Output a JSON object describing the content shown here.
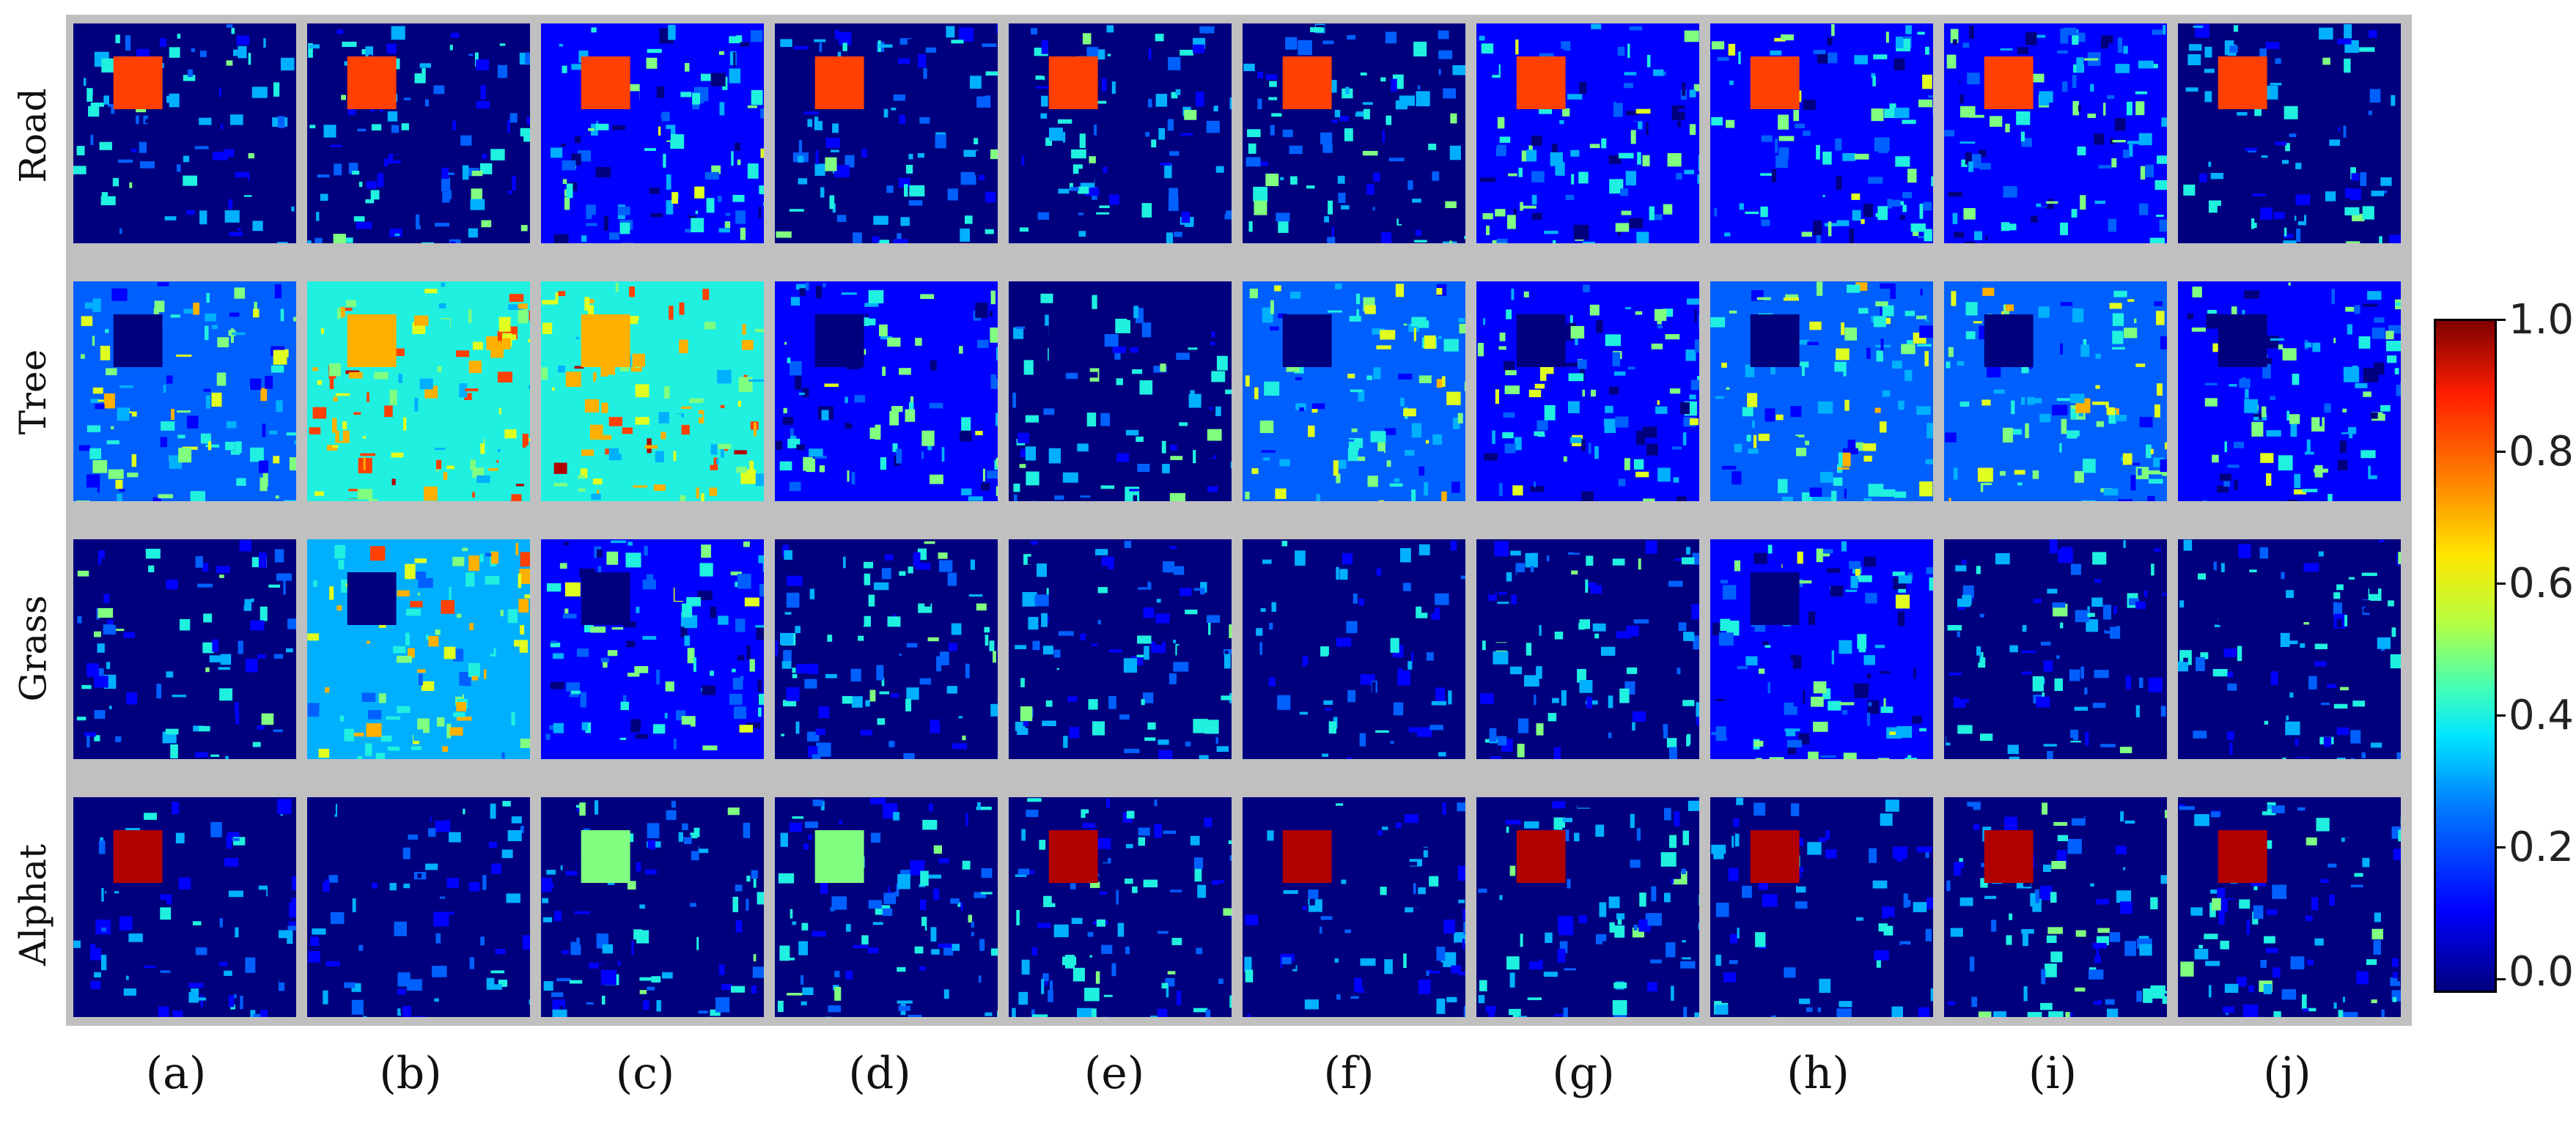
{
  "row_labels": [
    "Road",
    "Tree",
    "Grass",
    "Alphat"
  ],
  "column_labels": [
    "(a)",
    "(b)",
    "(c)",
    "(d)",
    "(e)",
    "(f)",
    "(g)",
    "(h)",
    "(i)",
    "(j)"
  ],
  "colorbar": {
    "ticks": [
      "1.0",
      "0.8",
      "0.6",
      "0.4",
      "0.2",
      "0.0"
    ],
    "colormap": "jet",
    "min": 0.0,
    "max": 1.0
  },
  "colors": {
    "background": "#c0c0c0",
    "panel_low": "#00007f",
    "panel_high": "#7f0000"
  }
}
